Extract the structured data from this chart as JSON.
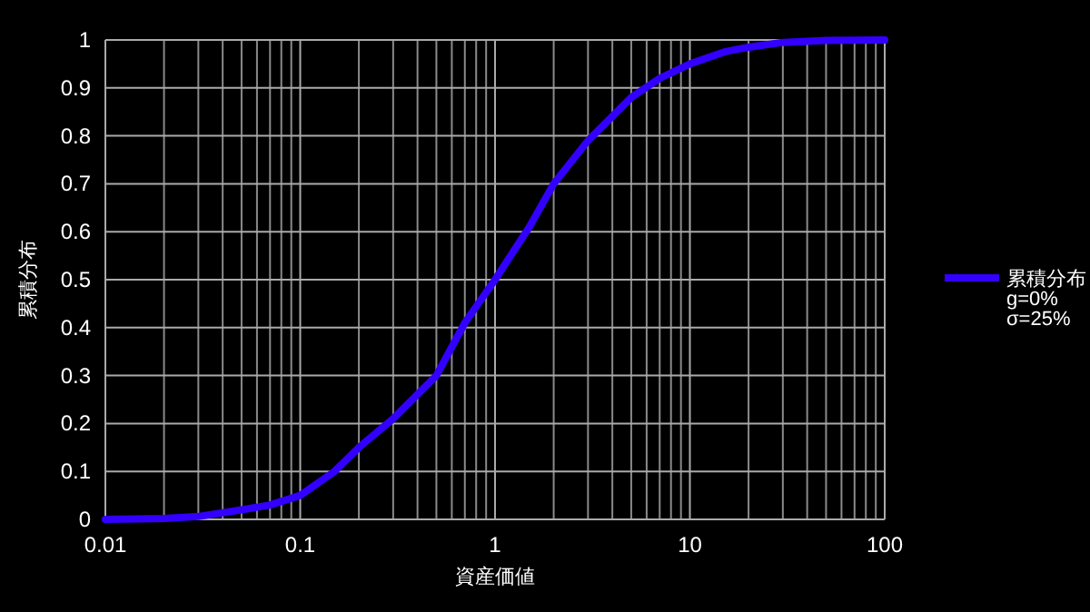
{
  "chart_data": {
    "type": "line",
    "xlabel": "資産価値",
    "ylabel": "累積分布",
    "log": "x",
    "grid": true,
    "legend": "right",
    "marker": "none",
    "line_style": "solid",
    "xlim": [
      0.01,
      100
    ],
    "ylim": [
      0,
      1
    ],
    "xticks": [
      0.01,
      0.1,
      1,
      10,
      100
    ],
    "yticks": [
      0,
      0.1,
      0.2,
      0.3,
      0.4,
      0.5,
      0.6,
      0.7,
      0.8,
      0.9,
      1
    ],
    "x": [
      0.01,
      0.02,
      0.03,
      0.05,
      0.07,
      0.1,
      0.15,
      0.2,
      0.3,
      0.5,
      0.7,
      1,
      1.5,
      2,
      3,
      5,
      7,
      10,
      15,
      20,
      30,
      50,
      100
    ],
    "series": [
      {
        "name": "累積分布\ng=0%\nσ=25%",
        "color": "#3300ff",
        "values": [
          0,
          0.002,
          0.006,
          0.02,
          0.03,
          0.05,
          0.1,
          0.15,
          0.21,
          0.3,
          0.41,
          0.5,
          0.61,
          0.7,
          0.79,
          0.88,
          0.92,
          0.95,
          0.975,
          0.985,
          0.995,
          0.999,
          1
        ]
      }
    ]
  }
}
